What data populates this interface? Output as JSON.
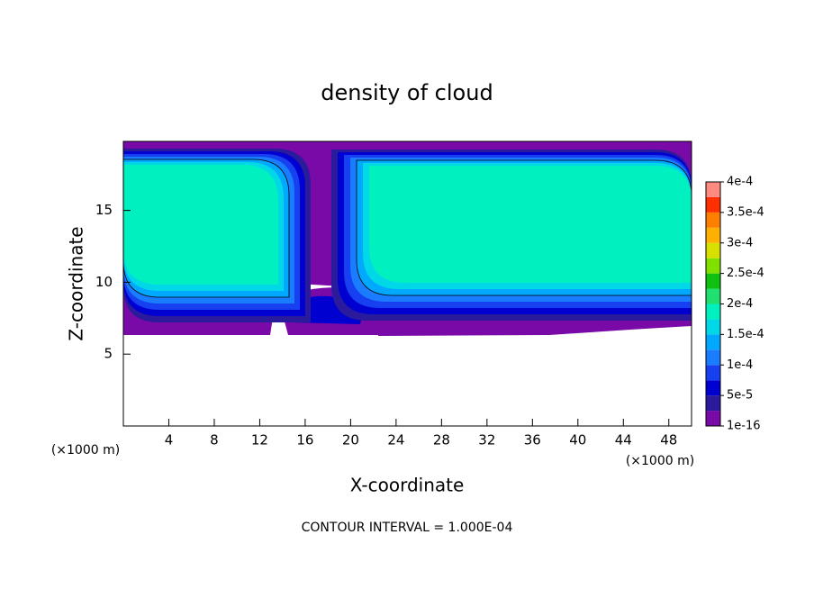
{
  "chart_data": {
    "type": "contour",
    "title": "density of cloud",
    "xlabel": "X-coordinate",
    "ylabel": "Z-coordinate",
    "x_unit": "(×1000 m)",
    "y_unit": "(×1000 m)",
    "footer": "CONTOUR INTERVAL = 1.000E-04",
    "xlim": [
      0,
      50
    ],
    "xticks": [
      4,
      8,
      12,
      16,
      20,
      24,
      28,
      32,
      36,
      40,
      44,
      48
    ],
    "ylim": [
      0,
      19.8
    ],
    "yticks": [
      5,
      10,
      15
    ],
    "colorbar": {
      "levels": [
        1e-16,
        2.5e-05,
        5e-05,
        7.5e-05,
        0.0001,
        0.000125,
        0.00015,
        0.000175,
        0.0002,
        0.000225,
        0.00025,
        0.000275,
        0.0003,
        0.000325,
        0.00035,
        0.000375,
        0.0004
      ],
      "colors": [
        "#7a0aa8",
        "#2a1a9c",
        "#0000d0",
        "#1640f0",
        "#1a7cff",
        "#00a8ff",
        "#00d8e8",
        "#00f0c0",
        "#20e070",
        "#10c010",
        "#80e000",
        "#d8e000",
        "#ffb000",
        "#ff8000",
        "#ff3000",
        "#ff8a80"
      ],
      "ticks": [
        {
          "value": 1e-16,
          "label": "1e-16"
        },
        {
          "value": 5e-05,
          "label": "5e-5"
        },
        {
          "value": 0.0001,
          "label": "1e-4"
        },
        {
          "value": 0.00015,
          "label": "1.5e-4"
        },
        {
          "value": 0.0002,
          "label": "2e-4"
        },
        {
          "value": 0.00025,
          "label": "2.5e-4"
        },
        {
          "value": 0.0003,
          "label": "3e-4"
        },
        {
          "value": 0.00035,
          "label": "3.5e-4"
        },
        {
          "value": 0.0004,
          "label": "4e-4"
        }
      ]
    }
  }
}
